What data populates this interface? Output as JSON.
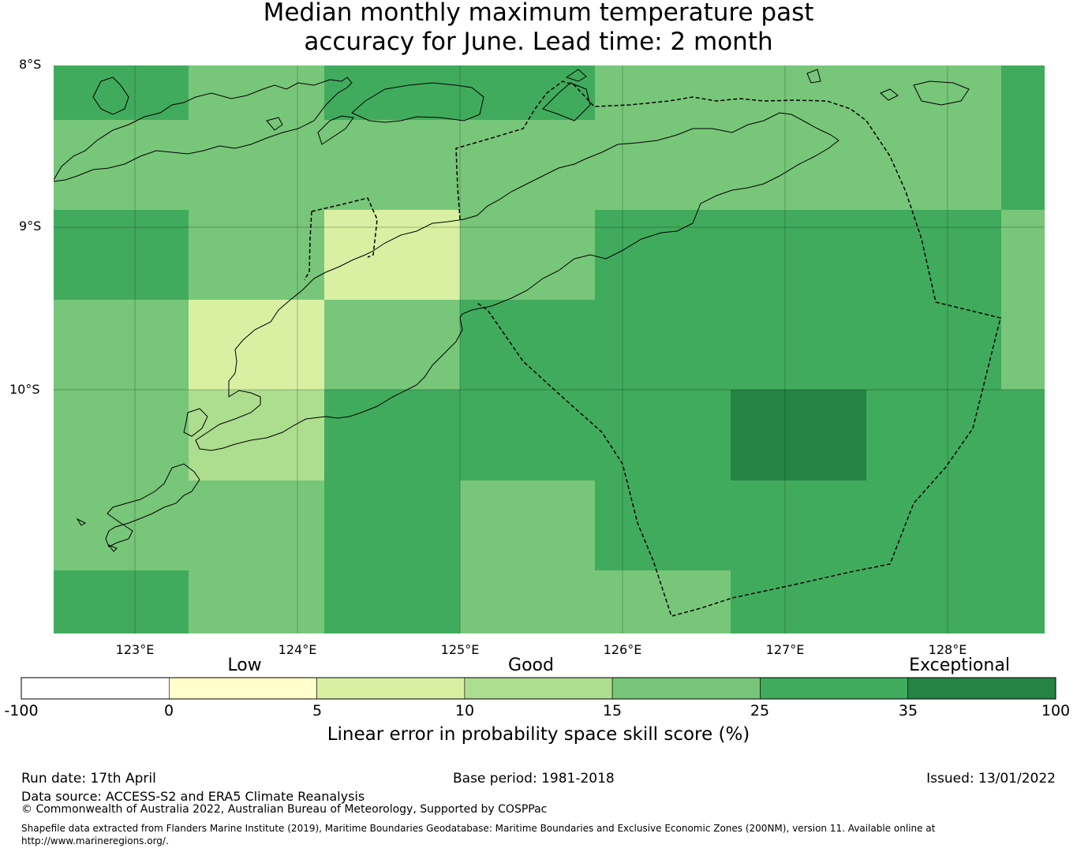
{
  "title_line1": "Median monthly maximum temperature past",
  "title_line2": "accuracy for June. Lead time: 2 month",
  "axes": {
    "lat_labels": [
      "8°S",
      "9°S",
      "10°S"
    ],
    "lon_labels": [
      "123°E",
      "124°E",
      "125°E",
      "126°E",
      "127°E",
      "128°E"
    ]
  },
  "map_grid": {
    "lon_range": [
      122.5,
      128.6
    ],
    "lat_range": [
      -8.0,
      -11.5
    ],
    "cell_size_deg": 0.833,
    "bins": [
      "15-25",
      "25-35",
      "35-100",
      "5-10",
      "10-15"
    ],
    "rows_north_to_south": [
      [
        1,
        0,
        1,
        1,
        0,
        0,
        0,
        1
      ],
      [
        0,
        0,
        0,
        0,
        0,
        0,
        0,
        1
      ],
      [
        1,
        0,
        3,
        0,
        1,
        1,
        1,
        0
      ],
      [
        0,
        3,
        0,
        1,
        1,
        1,
        1,
        0
      ],
      [
        0,
        4,
        1,
        1,
        1,
        2,
        1,
        1
      ],
      [
        0,
        0,
        1,
        0,
        1,
        1,
        1,
        1
      ],
      [
        1,
        0,
        1,
        0,
        0,
        1,
        1,
        1
      ]
    ]
  },
  "colorbar": {
    "categories": [
      "Low",
      "Good",
      "Exceptional"
    ],
    "ticks": [
      "-100",
      "0",
      "5",
      "10",
      "15",
      "25",
      "35",
      "100"
    ],
    "colors": [
      "#ffffff",
      "#ffffcc",
      "#d9f0a3",
      "#addd8e",
      "#78c679",
      "#41ab5d",
      "#238443"
    ],
    "label": "Linear error in probability space skill score (%)"
  },
  "footer": {
    "run_date": "Run date: 17th April",
    "base_period": "Base period: 1981-2018",
    "issued": "Issued: 13/01/2022",
    "data_source": "Data source: ACCESS-S2 and ERA5 Climate Reanalysis",
    "copyright": "© Commonwealth of Australia 2022, Australian Bureau of Meteorology, Supported by COSPPac",
    "shapefile_line1": "Shapefile data extracted from Flanders Marine Institute (2019), Maritime Boundaries Geodatabase: Maritime Boundaries and Exclusive Economic Zones (200NM), version 11. Available online at",
    "shapefile_line2": "http://www.marineregions.org/."
  }
}
